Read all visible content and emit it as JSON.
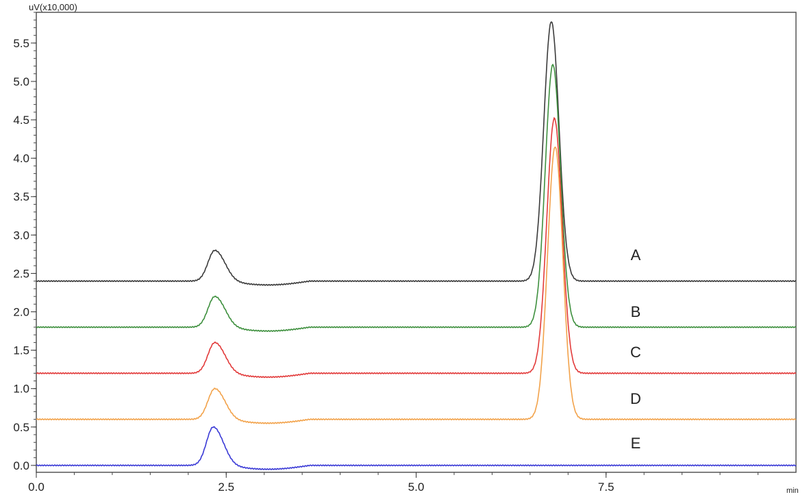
{
  "chart_data": {
    "type": "line",
    "title": "",
    "ylabel": "uV(x10,000)",
    "xlabel": "min",
    "xlim": [
      0,
      10
    ],
    "ylim": [
      -0.09,
      5.9
    ],
    "x_ticks": [
      "0.0",
      "2.5",
      "5.0",
      "7.5"
    ],
    "x_tick_values": [
      0,
      2.5,
      5.0,
      7.5
    ],
    "y_ticks": [
      "0.0",
      "0.5",
      "1.0",
      "1.5",
      "2.0",
      "2.5",
      "3.0",
      "3.5",
      "4.0",
      "4.5",
      "5.0",
      "5.5"
    ],
    "y_tick_values": [
      0,
      0.5,
      1.0,
      1.5,
      2.0,
      2.5,
      3.0,
      3.5,
      4.0,
      4.5,
      5.0,
      5.5
    ],
    "grid": false,
    "series": [
      {
        "name": "A",
        "color": "#3a3a3a",
        "baseline": 2.4,
        "peaks": [
          {
            "rt": 2.35,
            "apex": 2.8
          },
          {
            "rt": 6.78,
            "apex": 5.78
          }
        ]
      },
      {
        "name": "B",
        "color": "#3d8f3d",
        "baseline": 1.8,
        "peaks": [
          {
            "rt": 2.35,
            "apex": 2.2
          },
          {
            "rt": 6.8,
            "apex": 5.22
          }
        ]
      },
      {
        "name": "C",
        "color": "#e23a3a",
        "baseline": 1.2,
        "peaks": [
          {
            "rt": 2.35,
            "apex": 1.6
          },
          {
            "rt": 6.82,
            "apex": 4.52
          }
        ]
      },
      {
        "name": "D",
        "color": "#f2a24a",
        "baseline": 0.6,
        "peaks": [
          {
            "rt": 2.35,
            "apex": 1.0
          },
          {
            "rt": 6.83,
            "apex": 4.15
          }
        ]
      },
      {
        "name": "E",
        "color": "#3a3ad6",
        "baseline": 0.0,
        "peaks": [
          {
            "rt": 2.33,
            "apex": 0.5
          }
        ]
      }
    ]
  }
}
